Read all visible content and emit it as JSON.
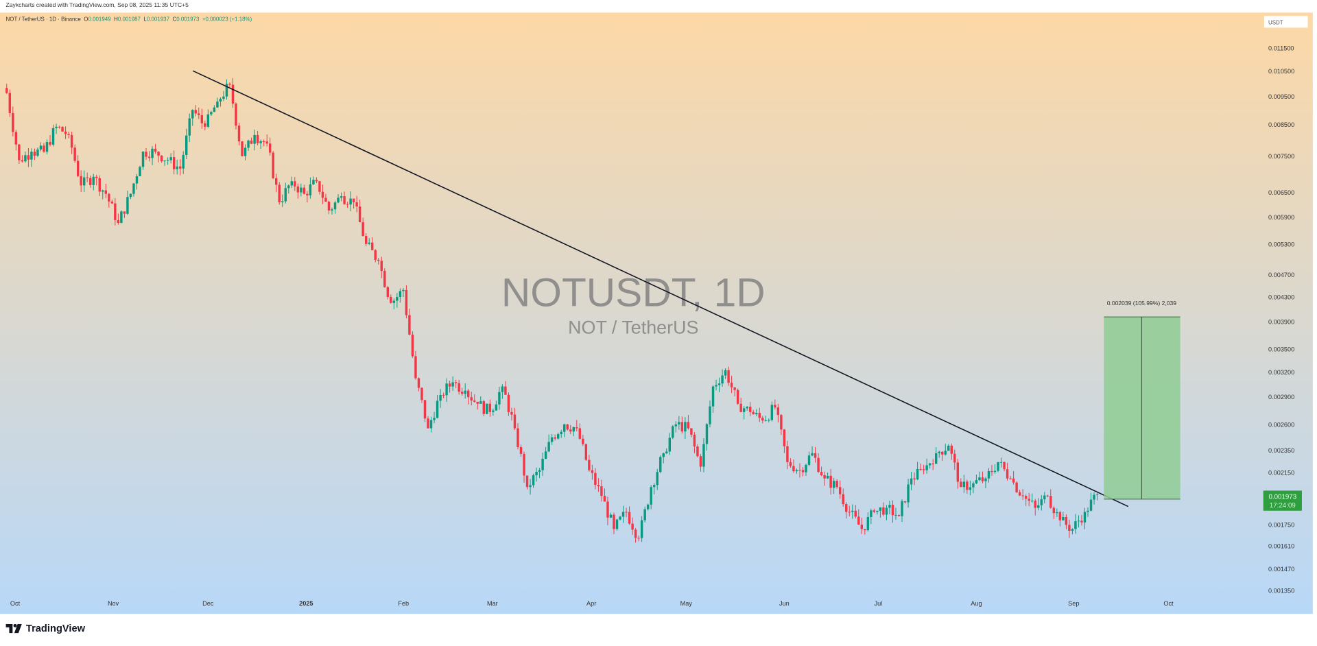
{
  "header": {
    "credit": "Zaykcharts created with TradingView.com, Sep 08, 2025 11:35 UTC+5"
  },
  "legend": {
    "symbol": "NOT / TetherUS · 1D · Binance",
    "open_label": "O",
    "open": "0.001949",
    "high_label": "H",
    "high": "0.001987",
    "low_label": "L",
    "low": "0.001937",
    "close_label": "C",
    "close": "0.001973",
    "change": "+0.000023 (+1.18%)"
  },
  "watermark": {
    "title": "NOTUSDT, 1D",
    "subtitle": "NOT / TetherUS"
  },
  "currency_label": "USDT",
  "last_price": {
    "value": "0.001973",
    "countdown": "17:24:09",
    "color": "#2e9e3f"
  },
  "measure": {
    "label": "0.002039 (105.99%) 2,039",
    "color": "#8fcc94"
  },
  "logo": "TradingView",
  "colors": {
    "up": "#089981",
    "down": "#f23645",
    "bg_top": "#fdd8a6",
    "bg_bottom": "#b8d8f8",
    "trendline": "#131722"
  },
  "chart_data": {
    "type": "candlestick",
    "title": "NOTUSDT, 1D",
    "y_scale": "log",
    "ylim": [
      0.0013,
      0.0118
    ],
    "y_ticks": [
      "0.011500",
      "0.010500",
      "0.009500",
      "0.008500",
      "0.007500",
      "0.006500",
      "0.005900",
      "0.005300",
      "0.004700",
      "0.004300",
      "0.003900",
      "0.003500",
      "0.003200",
      "0.002900",
      "0.002600",
      "0.002350",
      "0.002150",
      "0.001750",
      "0.001610",
      "0.001470",
      "0.001350"
    ],
    "x_ticks": [
      "Oct",
      "Nov",
      "Dec",
      "2025",
      "Feb",
      "Mar",
      "Apr",
      "May",
      "Jun",
      "Jul",
      "Aug",
      "Sep",
      "Oct"
    ],
    "grid": false,
    "closes": [
      0.00962,
      0.00738,
      0.00763,
      0.00763,
      0.00842,
      0.00815,
      0.00668,
      0.00691,
      0.00646,
      0.00576,
      0.00646,
      0.00763,
      0.00763,
      0.00738,
      0.00714,
      0.009,
      0.00842,
      0.0093,
      0.00994,
      0.0075,
      0.00815,
      0.00788,
      0.00625,
      0.00679,
      0.00646,
      0.00679,
      0.00605,
      0.0064,
      0.00625,
      0.0053,
      0.00496,
      0.0042,
      0.00442,
      0.00312,
      0.00256,
      0.00292,
      0.00307,
      0.00297,
      0.00282,
      0.00273,
      0.00302,
      0.00256,
      0.00203,
      0.00217,
      0.00247,
      0.0026,
      0.00256,
      0.00217,
      0.00196,
      0.00172,
      0.00184,
      0.00166,
      0.00203,
      0.00232,
      0.0026,
      0.00256,
      0.0022,
      0.00302,
      0.00322,
      0.00282,
      0.00273,
      0.00264,
      0.00278,
      0.00224,
      0.00217,
      0.00232,
      0.0021,
      0.00203,
      0.00184,
      0.00172,
      0.00184,
      0.00187,
      0.00181,
      0.0021,
      0.00217,
      0.00232,
      0.00239,
      0.00203,
      0.00206,
      0.0021,
      0.00224,
      0.0021,
      0.00196,
      0.00187,
      0.00196,
      0.00178,
      0.00172,
      0.00184,
      0.001973
    ],
    "trendline": {
      "from_price": 0.0105,
      "to_price": 0.00188
    },
    "measure_range": {
      "low": 0.001935,
      "high": 0.003974
    }
  }
}
